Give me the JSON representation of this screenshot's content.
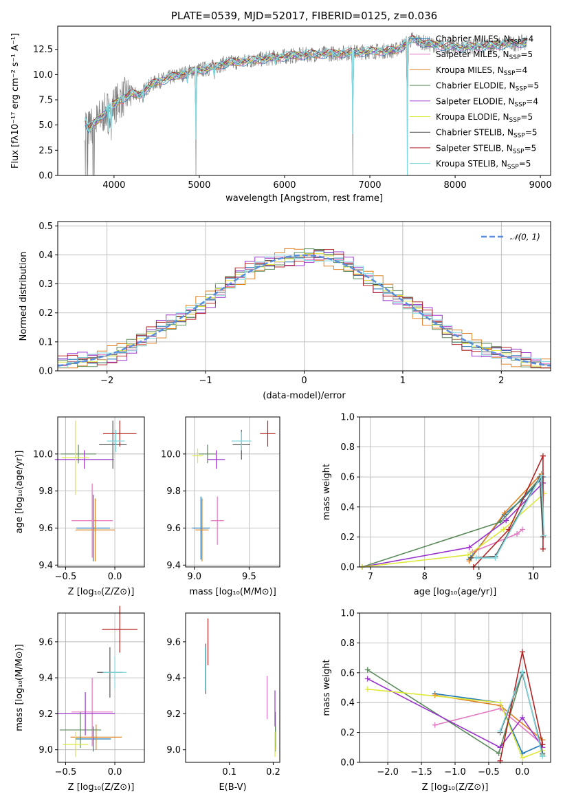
{
  "chart_data": [
    {
      "type": "line",
      "id": "spectrum",
      "title": "PLATE=0539, MJD=52017, FIBERID=0125, z=0.036",
      "xlabel": "wavelength [Angstrom, rest frame]",
      "ylabel": "Flux [fλ10⁻¹⁷ erg cm⁻² s⁻¹ A⁻¹]",
      "xlim": [
        3340,
        9120
      ],
      "ylim": [
        0,
        14.8
      ],
      "xticks": [
        4000,
        5000,
        6000,
        7000,
        8000,
        9000
      ],
      "yticks": [
        0.0,
        2.5,
        5.0,
        7.5,
        10.0,
        12.5
      ],
      "ytick_labels": [
        "0.0",
        "2.5",
        "5.0",
        "7.5",
        "10.0",
        "12.5"
      ],
      "legend_position": "right",
      "continuum": [
        [
          3660,
          5.5
        ],
        [
          3700,
          4.6
        ],
        [
          3800,
          5.4
        ],
        [
          3900,
          6.3
        ],
        [
          4000,
          7.0
        ],
        [
          4100,
          7.7
        ],
        [
          4200,
          8.1
        ],
        [
          4300,
          8.0
        ],
        [
          4400,
          8.8
        ],
        [
          4500,
          9.3
        ],
        [
          4700,
          9.8
        ],
        [
          4900,
          10.3
        ],
        [
          5100,
          10.6
        ],
        [
          5300,
          11.1
        ],
        [
          5500,
          11.3
        ],
        [
          5800,
          11.6
        ],
        [
          6000,
          11.8
        ],
        [
          6300,
          12.0
        ],
        [
          6600,
          12.1
        ],
        [
          7000,
          12.3
        ],
        [
          7300,
          12.4
        ],
        [
          7500,
          13.5
        ],
        [
          7700,
          13.0
        ],
        [
          8000,
          12.7
        ],
        [
          8300,
          12.8
        ],
        [
          8600,
          13.0
        ],
        [
          8840,
          13.2
        ]
      ],
      "absorption_features": [
        [
          3934,
          3.0
        ],
        [
          3968,
          3.5
        ],
        [
          4102,
          6.9
        ],
        [
          4340,
          7.2
        ],
        [
          4861,
          9.0
        ],
        [
          4960,
          0.0
        ],
        [
          5175,
          9.4
        ],
        [
          5890,
          10.8
        ],
        [
          6563,
          11.5
        ],
        [
          6800,
          0.0
        ],
        [
          7440,
          0.0
        ]
      ],
      "series": [
        {
          "label_prefix": "Chabrier MILES, N",
          "label_sub": "SSP",
          "label_suffix": "=4",
          "color": "#1f77b4"
        },
        {
          "label_prefix": "Salpeter MILES, N",
          "label_sub": "SSP",
          "label_suffix": "=5",
          "color": "#e377c2"
        },
        {
          "label_prefix": "Kroupa MILES, N",
          "label_sub": "SSP",
          "label_suffix": "=4",
          "color": "#e08020"
        },
        {
          "label_prefix": "Chabrier ELODIE, N",
          "label_sub": "SSP",
          "label_suffix": "=5",
          "color": "#5a8a5a"
        },
        {
          "label_prefix": "Salpeter ELODIE, N",
          "label_sub": "SSP",
          "label_suffix": "=4",
          "color": "#9932cc"
        },
        {
          "label_prefix": "Kroupa ELODIE, N",
          "label_sub": "SSP",
          "label_suffix": "=5",
          "color": "#dde83a"
        },
        {
          "label_prefix": "Chabrier STELIB, N",
          "label_sub": "SSP",
          "label_suffix": "=5",
          "color": "#555555"
        },
        {
          "label_prefix": "Salpeter STELIB, N",
          "label_sub": "SSP",
          "label_suffix": "=5",
          "color": "#b22222"
        },
        {
          "label_prefix": "Kroupa STELIB, N",
          "label_sub": "SSP",
          "label_suffix": "=5",
          "color": "#7fd8e0"
        }
      ]
    },
    {
      "type": "line",
      "id": "residuals",
      "xlabel": "(data-model)/error",
      "ylabel": "Normed distribution",
      "xlim": [
        -2.5,
        2.5
      ],
      "ylim": [
        0,
        0.515
      ],
      "xticks": [
        -2,
        -1,
        0,
        1,
        2
      ],
      "xtick_labels": [
        "−2",
        "−1",
        "0",
        "1",
        "2"
      ],
      "yticks": [
        0.0,
        0.1,
        0.2,
        0.3,
        0.4,
        0.5
      ],
      "ytick_labels": [
        "0.0",
        "0.1",
        "0.2",
        "0.3",
        "0.4",
        "0.5"
      ],
      "grid": true,
      "legend_position": "top-right",
      "reference_curve": {
        "label": "𝒩(0, 1)",
        "color": "#5b8ddf",
        "style": "dashed"
      },
      "bin_width": 0.1,
      "histogram_colors": [
        "#1f77b4",
        "#e377c2",
        "#e08020",
        "#5a8a5a",
        "#9932cc",
        "#dde83a",
        "#555555",
        "#b22222",
        "#7fd8e0"
      ],
      "histogram_offsets": [
        0.012,
        -0.008,
        0.015,
        -0.014,
        0.02,
        0.006,
        -0.004,
        -0.018,
        0.01
      ]
    },
    {
      "type": "scatter",
      "id": "Z-age",
      "xlabel": "Z [log₁₀(Z/Z⊙)]",
      "ylabel": "age  [log₁₀(age/yr)]",
      "xlim": [
        -0.58,
        0.3
      ],
      "ylim": [
        9.39,
        10.2
      ],
      "xticks": [
        -0.5,
        0.0
      ],
      "xtick_labels": [
        "−0.5",
        "0.0"
      ],
      "yticks": [
        9.4,
        9.6,
        9.8,
        10.0
      ],
      "ytick_labels": [
        "9.4",
        "9.6",
        "9.8",
        "10.0"
      ],
      "grid": true,
      "points": [
        {
          "color": "#1f77b4",
          "x": -0.22,
          "y": 9.6,
          "xerr": 0.17,
          "yerr": 0.18
        },
        {
          "color": "#e377c2",
          "x": -0.23,
          "y": 9.64,
          "xerr": 0.21,
          "yerr": 0.2
        },
        {
          "color": "#e08020",
          "x": -0.2,
          "y": 9.59,
          "xerr": 0.2,
          "yerr": 0.17
        },
        {
          "color": "#5a8a5a",
          "x": -0.37,
          "y": 10.0,
          "xerr": 0.18,
          "yerr": 0.05
        },
        {
          "color": "#9932cc",
          "x": -0.31,
          "y": 9.97,
          "xerr": 0.3,
          "yerr": 0.05
        },
        {
          "color": "#dde83a",
          "x": -0.4,
          "y": 9.98,
          "xerr": 0.14,
          "yerr": 0.2
        },
        {
          "color": "#555555",
          "x": -0.02,
          "y": 10.05,
          "xerr": 0.14,
          "yerr": 0.13
        },
        {
          "color": "#b22222",
          "x": 0.05,
          "y": 10.11,
          "xerr": 0.17,
          "yerr": 0.07
        },
        {
          "color": "#7fd8e0",
          "x": 0.01,
          "y": 10.07,
          "xerr": 0.09,
          "yerr": 0.06
        }
      ]
    },
    {
      "type": "scatter",
      "id": "mass-age",
      "xlabel": "mass [log₁₀(M/M⊙)]",
      "ylabel": "",
      "xlim": [
        8.92,
        9.78
      ],
      "ylim": [
        9.39,
        10.2
      ],
      "xticks": [
        9.0,
        9.5
      ],
      "xtick_labels": [
        "9.0",
        "9.5"
      ],
      "yticks": [
        9.4,
        9.6,
        9.8,
        10.0
      ],
      "ytick_labels": [
        "9.4",
        "9.6",
        "9.8",
        "10.0"
      ],
      "grid": true,
      "points": [
        {
          "color": "#1f77b4",
          "x": 9.06,
          "y": 9.6,
          "xerr": 0.08,
          "yerr": 0.17
        },
        {
          "color": "#e377c2",
          "x": 9.21,
          "y": 9.64,
          "xerr": 0.06,
          "yerr": 0.13
        },
        {
          "color": "#e08020",
          "x": 9.07,
          "y": 9.59,
          "xerr": 0.06,
          "yerr": 0.17
        },
        {
          "color": "#5a8a5a",
          "x": 9.12,
          "y": 10.0,
          "xerr": 0.08,
          "yerr": 0.05
        },
        {
          "color": "#9932cc",
          "x": 9.2,
          "y": 9.97,
          "xerr": 0.08,
          "yerr": 0.05
        },
        {
          "color": "#dde83a",
          "x": 9.03,
          "y": 9.99,
          "xerr": 0.05,
          "yerr": 0.04
        },
        {
          "color": "#555555",
          "x": 9.43,
          "y": 10.05,
          "xerr": 0.08,
          "yerr": 0.08
        },
        {
          "color": "#b22222",
          "x": 9.67,
          "y": 10.11,
          "xerr": 0.07,
          "yerr": 0.07
        },
        {
          "color": "#7fd8e0",
          "x": 9.43,
          "y": 10.07,
          "xerr": 0.09,
          "yerr": 0.05
        }
      ]
    },
    {
      "type": "line",
      "id": "age-weight",
      "xlabel": "age  [log₁₀(age/yr)]",
      "ylabel": "mass weight",
      "xlim": [
        6.8,
        10.32
      ],
      "ylim": [
        0,
        1
      ],
      "xticks": [
        7,
        8,
        9,
        10
      ],
      "yticks": [
        0.0,
        0.2,
        0.4,
        0.6,
        0.8,
        1.0
      ],
      "ytick_labels": [
        "0.0",
        "0.2",
        "0.4",
        "0.6",
        "0.8",
        "1.0"
      ],
      "grid": true,
      "series": [
        {
          "color": "#1f77b4",
          "x": [
            8.82,
            9.47,
            9.8,
            10.18,
            10.18
          ],
          "y": [
            0.05,
            0.35,
            0.45,
            0.6,
            0.2
          ]
        },
        {
          "color": "#e377c2",
          "x": [
            8.88,
            9.7,
            9.8
          ],
          "y": [
            0.1,
            0.22,
            0.25
          ]
        },
        {
          "color": "#e08020",
          "x": [
            8.82,
            9.47,
            10.15
          ],
          "y": [
            0.04,
            0.36,
            0.62
          ]
        },
        {
          "color": "#5a8a5a",
          "x": [
            6.85,
            9.4,
            10.15,
            10.18
          ],
          "y": [
            0.0,
            0.3,
            0.6,
            0.2
          ]
        },
        {
          "color": "#9932cc",
          "x": [
            6.85,
            8.82,
            9.5,
            10.18
          ],
          "y": [
            0.0,
            0.13,
            0.31,
            0.56
          ]
        },
        {
          "color": "#dde83a",
          "x": [
            6.85,
            8.8,
            9.45,
            10.2
          ],
          "y": [
            0.0,
            0.08,
            0.25,
            0.49
          ]
        },
        {
          "color": "#555555",
          "x": [
            8.85,
            9.3,
            10.12,
            10.18
          ],
          "y": [
            0.06,
            0.07,
            0.6,
            0.2
          ]
        },
        {
          "color": "#b22222",
          "x": [
            8.9,
            9.55,
            10.18,
            10.18
          ],
          "y": [
            0.0,
            0.25,
            0.74,
            0.12
          ]
        },
        {
          "color": "#7fd8e0",
          "x": [
            8.95,
            9.3,
            10.15,
            10.2
          ],
          "y": [
            0.06,
            0.06,
            0.61,
            0.21
          ]
        }
      ]
    },
    {
      "type": "scatter",
      "id": "Z-mass",
      "xlabel": "Z [log₁₀(Z/Z⊙)]",
      "ylabel": "mass [log₁₀(M/M⊙)]",
      "xlim": [
        -0.58,
        0.3
      ],
      "ylim": [
        8.93,
        9.76
      ],
      "xticks": [
        -0.5,
        0.0
      ],
      "xtick_labels": [
        "−0.5",
        "0.0"
      ],
      "yticks": [
        9.0,
        9.2,
        9.4,
        9.6
      ],
      "ytick_labels": [
        "9.0",
        "9.2",
        "9.4",
        "9.6"
      ],
      "grid": true,
      "points": [
        {
          "color": "#1f77b4",
          "x": -0.22,
          "y": 9.06,
          "xerr": 0.18,
          "yerr": 0.07
        },
        {
          "color": "#e377c2",
          "x": -0.23,
          "y": 9.21,
          "xerr": 0.21,
          "yerr": 0.19
        },
        {
          "color": "#e08020",
          "x": -0.19,
          "y": 9.07,
          "xerr": 0.26,
          "yerr": 0.07
        },
        {
          "color": "#5a8a5a",
          "x": -0.35,
          "y": 9.11,
          "xerr": 0.21,
          "yerr": 0.1
        },
        {
          "color": "#9932cc",
          "x": -0.3,
          "y": 9.2,
          "xerr": 0.3,
          "yerr": 0.12
        },
        {
          "color": "#dde83a",
          "x": -0.4,
          "y": 9.03,
          "xerr": 0.13,
          "yerr": 0.07
        },
        {
          "color": "#555555",
          "x": -0.05,
          "y": 9.43,
          "xerr": 0.13,
          "yerr": 0.14
        },
        {
          "color": "#b22222",
          "x": 0.05,
          "y": 9.67,
          "xerr": 0.18,
          "yerr": 0.13
        },
        {
          "color": "#7fd8e0",
          "x": 0.0,
          "y": 9.43,
          "xerr": 0.12,
          "yerr": 0.09
        }
      ]
    },
    {
      "type": "scatter",
      "id": "ebv-mass",
      "xlabel": "E(B-V)",
      "ylabel": "",
      "xlim": [
        0.0,
        0.215
      ],
      "ylim": [
        8.93,
        9.76
      ],
      "xticks": [
        0.1,
        0.2
      ],
      "xtick_labels": [
        "0.1",
        "0.2"
      ],
      "yticks": [
        9.0,
        9.2,
        9.4,
        9.6
      ],
      "ytick_labels": [
        "9.0",
        "9.2",
        "9.4",
        "9.6"
      ],
      "grid": false,
      "points": [
        {
          "color": "#1f77b4",
          "x": 0.205,
          "y": 9.06,
          "xerr": 0,
          "yerr": 0.07
        },
        {
          "color": "#e377c2",
          "x": 0.186,
          "y": 9.29,
          "xerr": 0,
          "yerr": 0.12
        },
        {
          "color": "#e08020",
          "x": 0.205,
          "y": 9.07,
          "xerr": 0,
          "yerr": 0.07
        },
        {
          "color": "#5a8a5a",
          "x": 0.205,
          "y": 9.11,
          "xerr": 0,
          "yerr": 0.1
        },
        {
          "color": "#9932cc",
          "x": 0.204,
          "y": 9.23,
          "xerr": 0,
          "yerr": 0.1
        },
        {
          "color": "#dde83a",
          "x": 0.204,
          "y": 9.03,
          "xerr": 0,
          "yerr": 0.07
        },
        {
          "color": "#555555",
          "x": 0.046,
          "y": 9.45,
          "xerr": 0,
          "yerr": 0.14
        },
        {
          "color": "#b22222",
          "x": 0.051,
          "y": 9.6,
          "xerr": 0,
          "yerr": 0.13
        },
        {
          "color": "#7fd8e0",
          "x": 0.045,
          "y": 9.45,
          "xerr": 0,
          "yerr": 0.12
        }
      ]
    },
    {
      "type": "line",
      "id": "Z-weight",
      "xlabel": "Z [log₁₀(Z/Z⊙)]",
      "ylabel": "mass weight",
      "xlim": [
        -2.42,
        0.42
      ],
      "ylim": [
        0,
        1
      ],
      "xticks": [
        -2.0,
        -1.5,
        -1.0,
        -0.5,
        0.0
      ],
      "xtick_labels": [
        "−2.0",
        "−1.5",
        "−1.0",
        "−0.5",
        "0.0"
      ],
      "yticks": [
        0.0,
        0.2,
        0.4,
        0.6,
        0.8,
        1.0
      ],
      "ytick_labels": [
        "0.0",
        "0.2",
        "0.4",
        "0.6",
        "0.8",
        "1.0"
      ],
      "grid": true,
      "series": [
        {
          "color": "#1f77b4",
          "x": [
            -1.3,
            -0.33,
            0.0,
            0.3
          ],
          "y": [
            0.46,
            0.4,
            0.06,
            0.12
          ]
        },
        {
          "color": "#e377c2",
          "x": [
            -1.3,
            -0.33,
            0.3
          ],
          "y": [
            0.25,
            0.36,
            0.12
          ]
        },
        {
          "color": "#e08020",
          "x": [
            -1.3,
            -0.33,
            0.3
          ],
          "y": [
            0.45,
            0.38,
            0.15
          ]
        },
        {
          "color": "#5a8a5a",
          "x": [
            -2.3,
            -0.35,
            0.0,
            0.3
          ],
          "y": [
            0.62,
            0.06,
            0.6,
            0.05
          ]
        },
        {
          "color": "#9932cc",
          "x": [
            -2.3,
            -0.33,
            0.0,
            0.3
          ],
          "y": [
            0.56,
            0.1,
            0.3,
            0.1
          ]
        },
        {
          "color": "#dde83a",
          "x": [
            -2.3,
            -0.33,
            0.0,
            0.3
          ],
          "y": [
            0.49,
            0.4,
            0.03,
            0.08
          ]
        },
        {
          "color": "#555555",
          "x": [
            -0.33,
            0.0,
            0.3
          ],
          "y": [
            0.2,
            0.6,
            0.06
          ]
        },
        {
          "color": "#b22222",
          "x": [
            -0.33,
            0.0,
            0.3
          ],
          "y": [
            0.01,
            0.74,
            0.12
          ]
        },
        {
          "color": "#7fd8e0",
          "x": [
            -0.33,
            0.0,
            0.3
          ],
          "y": [
            0.21,
            0.61,
            0.04
          ]
        }
      ]
    }
  ]
}
